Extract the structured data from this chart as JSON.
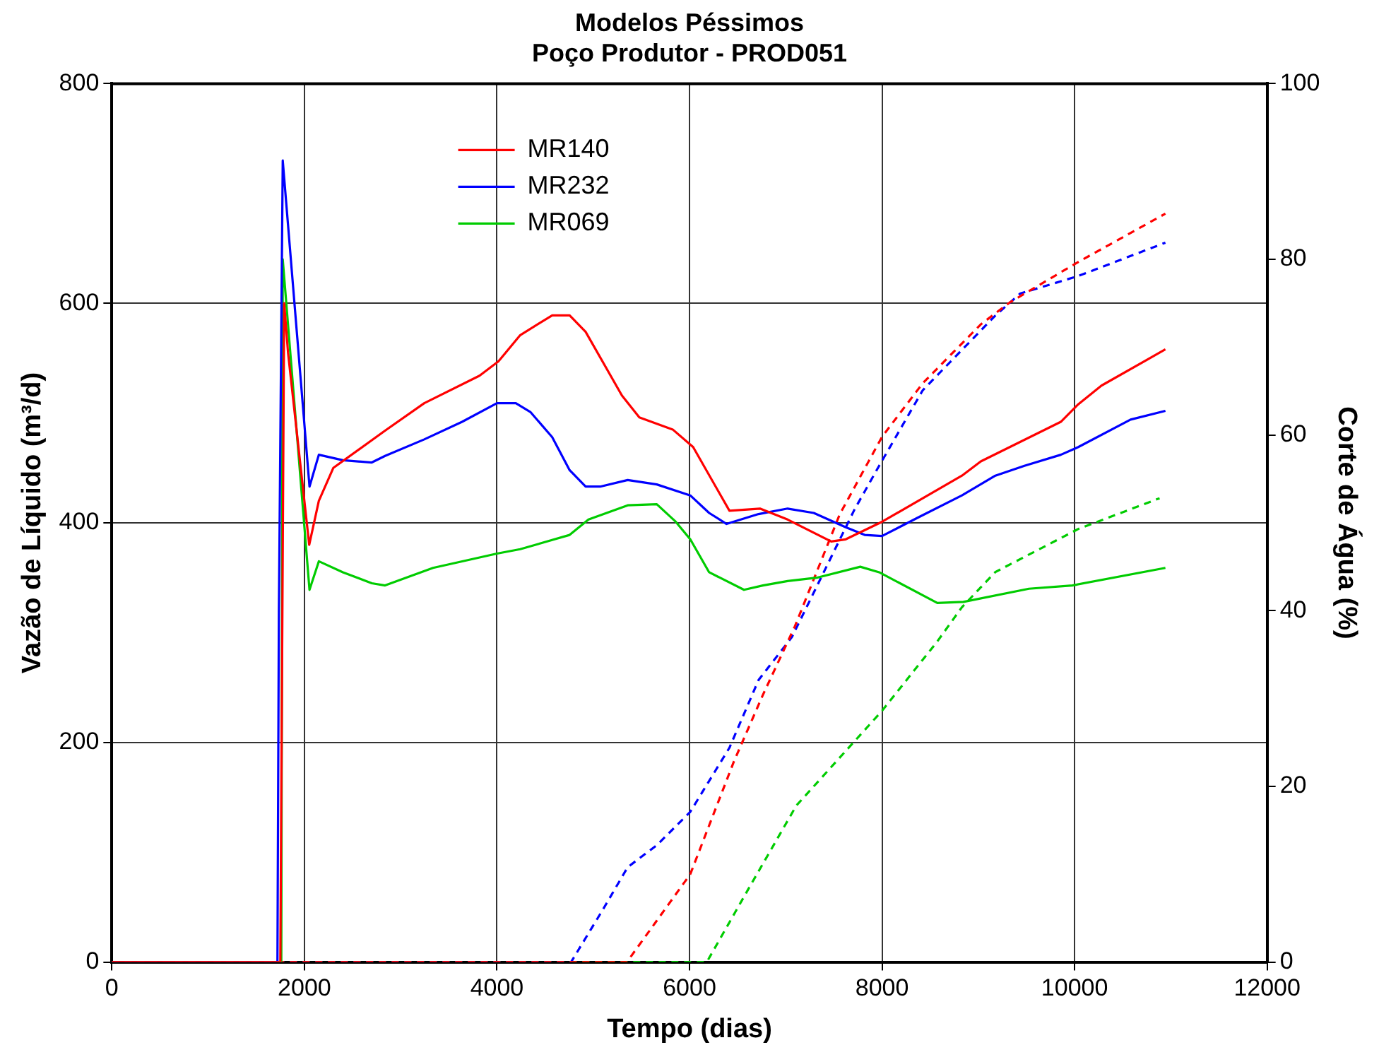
{
  "chart_data": {
    "type": "line",
    "title": "Modelos Péssimos",
    "subtitle": "Poço Produtor - PROD051",
    "xlabel": "Tempo (dias)",
    "ylabel": "Vazão de Líquido (m³/d)",
    "y2label": "Corte de Água (%)",
    "xlim": [
      0,
      12000
    ],
    "xticks": [
      0,
      2000,
      4000,
      6000,
      8000,
      10000,
      12000
    ],
    "ylim": [
      0,
      800
    ],
    "yticks": [
      0,
      200,
      400,
      600,
      800
    ],
    "y2lim": [
      0,
      100
    ],
    "y2ticks": [
      0,
      20,
      40,
      60,
      80,
      100
    ],
    "grid": true,
    "legend": "top",
    "marker": "none",
    "series": [
      {
        "name": "MR140",
        "color": "#ff0000",
        "line_style": "solid",
        "x": [
          0,
          1750,
          1790,
          1830,
          2050,
          2150,
          2300,
          2838,
          3245,
          3819,
          4015,
          4242,
          4574,
          4755,
          4921,
          5298,
          5479,
          5826,
          6038,
          6415,
          6732,
          7019,
          7472,
          7623,
          8000,
          8830,
          9026,
          9857,
          10038,
          10279,
          10943
        ],
        "values": [
          0,
          0,
          600,
          555,
          380,
          420,
          450,
          484,
          509,
          534,
          547,
          571,
          589,
          589,
          574,
          516,
          496,
          485,
          469,
          411,
          413,
          403,
          383,
          385,
          401,
          443,
          456,
          492,
          508,
          525,
          558
        ]
      },
      {
        "name": "MR232",
        "color": "#0000ff",
        "line_style": "solid",
        "x": [
          0,
          1720,
          1735,
          1775,
          2053,
          2150,
          2400,
          2700,
          2838,
          3245,
          3638,
          4000,
          4196,
          4347,
          4574,
          4755,
          4921,
          5072,
          5358,
          5660,
          6008,
          6204,
          6385,
          6717,
          7019,
          7291,
          7623,
          7819,
          8000,
          8377,
          8830,
          9177,
          9479,
          9857,
          10038,
          10581,
          10943
        ],
        "values": [
          0,
          0,
          320,
          730,
          433,
          462,
          457,
          455,
          461,
          476,
          492,
          509,
          509,
          501,
          478,
          448,
          433,
          433,
          439,
          435,
          425,
          409,
          399,
          408,
          413,
          409,
          396,
          389,
          388,
          405,
          425,
          443,
          452,
          462,
          469,
          494,
          502
        ]
      },
      {
        "name": "MR069",
        "color": "#00cc00",
        "line_style": "solid",
        "x": [
          0,
          1760,
          1775,
          2053,
          2150,
          2400,
          2700,
          2838,
          3336,
          4000,
          4242,
          4755,
          4951,
          5358,
          5660,
          5857,
          6008,
          6204,
          6566,
          6762,
          7019,
          7321,
          7774,
          7970,
          8574,
          8845,
          9525,
          9977,
          10943
        ],
        "values": [
          0,
          0,
          640,
          339,
          365,
          355,
          345,
          343,
          359,
          372,
          376,
          389,
          403,
          416,
          417,
          401,
          385,
          355,
          339,
          343,
          347,
          350,
          360,
          355,
          327,
          328,
          340,
          343,
          359
        ]
      },
      {
        "color": "#ff0000",
        "line_style": "dashed",
        "axis": "y2",
        "x": [
          0,
          5350,
          6008,
          6460,
          6762,
          7094,
          7562,
          8000,
          8423,
          9026,
          9328,
          10038,
          10943
        ],
        "values": [
          0,
          0,
          10,
          22.8,
          30.4,
          38.2,
          51,
          59.8,
          65.9,
          72.6,
          75.1,
          79.7,
          85.2
        ]
      },
      {
        "color": "#0000ff",
        "line_style": "dashed",
        "axis": "y2",
        "x": [
          0,
          4770,
          5102,
          5358,
          5660,
          6008,
          6415,
          6717,
          7064,
          7713,
          7970,
          8423,
          9177,
          9434,
          10038,
          10943
        ],
        "values": [
          0,
          0,
          6,
          10.8,
          13.3,
          17.1,
          24.4,
          32.1,
          37,
          51.5,
          56.5,
          65.1,
          73.6,
          76.1,
          78.1,
          81.9
        ]
      },
      {
        "color": "#00cc00",
        "line_style": "dashed",
        "axis": "y2",
        "x": [
          0,
          6180,
          6611,
          7109,
          8000,
          8574,
          8830,
          9177,
          10038,
          10883
        ],
        "values": [
          0,
          0,
          8.3,
          17.8,
          28.6,
          36.5,
          40.4,
          44.4,
          49.3,
          52.8
        ]
      }
    ]
  }
}
